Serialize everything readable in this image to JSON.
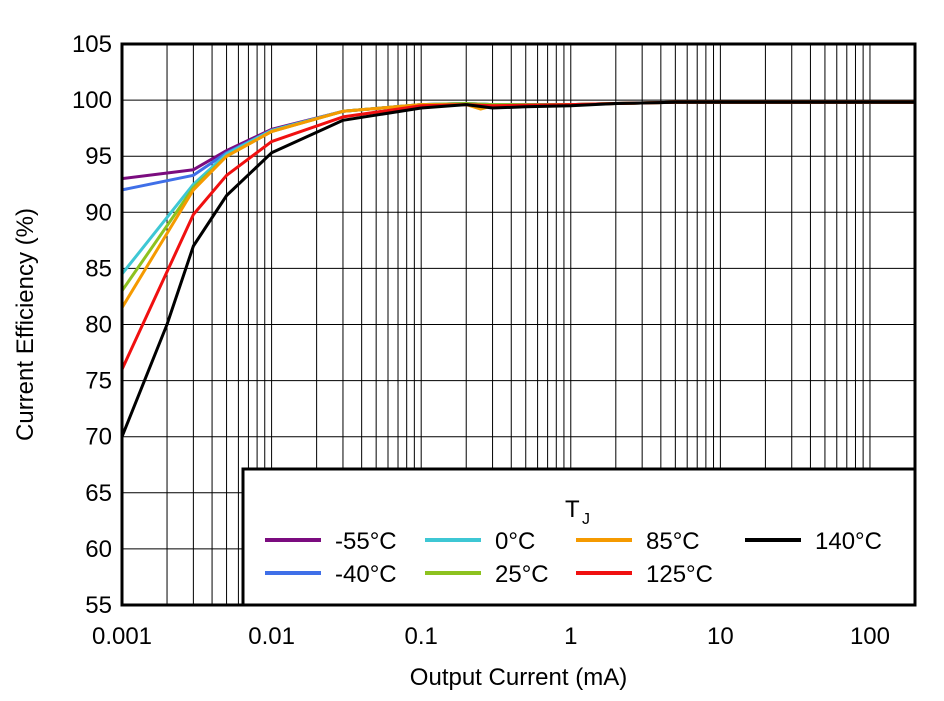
{
  "chart_data": {
    "type": "line",
    "title": "",
    "xlabel": "Output Current (mA)",
    "ylabel": "Current Efficiency (%)",
    "xscale": "log",
    "xlim": [
      0.001,
      200
    ],
    "ylim": [
      55,
      105
    ],
    "grid": true,
    "xticks": [
      0.001,
      0.01,
      0.1,
      1,
      10,
      100
    ],
    "xtick_labels": [
      "0.001",
      "0.01",
      "0.1",
      "1",
      "10",
      "100"
    ],
    "yticks": [
      55,
      60,
      65,
      70,
      75,
      80,
      85,
      90,
      95,
      100,
      105
    ],
    "ytick_labels": [
      "55",
      "60",
      "65",
      "70",
      "75",
      "80",
      "85",
      "90",
      "95",
      "100",
      "105"
    ],
    "legend_title": "T",
    "legend_title_sub": "J",
    "legend_position": "bottom-right",
    "series": [
      {
        "name": "-55°C",
        "color": "#7B0C7F",
        "x": [
          0.001,
          0.003,
          0.005,
          0.01,
          0.03,
          0.1,
          0.2,
          0.3,
          1,
          2,
          5,
          10,
          50,
          200
        ],
        "y": [
          93,
          93.8,
          95.5,
          97.4,
          99,
          99.6,
          99.7,
          99.6,
          99.6,
          99.7,
          99.8,
          99.8,
          99.8,
          99.8
        ]
      },
      {
        "name": "-40°C",
        "color": "#3F6FE8",
        "x": [
          0.001,
          0.003,
          0.005,
          0.01,
          0.03,
          0.1,
          0.2,
          0.3,
          1,
          2,
          5,
          10,
          50,
          200
        ],
        "y": [
          92,
          93.3,
          95.3,
          97.3,
          99,
          99.6,
          99.7,
          99.6,
          99.6,
          99.7,
          99.8,
          99.8,
          99.8,
          99.8
        ]
      },
      {
        "name": "0°C",
        "color": "#3EC7D4",
        "x": [
          0.001,
          0.003,
          0.005,
          0.01,
          0.03,
          0.1,
          0.2,
          0.3,
          1,
          2,
          5,
          10,
          50,
          200
        ],
        "y": [
          84.5,
          92.5,
          95.2,
          97.3,
          99,
          99.6,
          99.7,
          99.6,
          99.6,
          99.7,
          99.8,
          99.8,
          99.8,
          99.8
        ]
      },
      {
        "name": "25°C",
        "color": "#8DC21F",
        "x": [
          0.001,
          0.003,
          0.005,
          0.01,
          0.03,
          0.1,
          0.2,
          0.3,
          1,
          2,
          5,
          10,
          50,
          200
        ],
        "y": [
          83,
          92.2,
          95,
          97.2,
          99,
          99.6,
          99.7,
          99.6,
          99.6,
          99.7,
          99.8,
          99.8,
          99.8,
          99.8
        ]
      },
      {
        "name": "85°C",
        "color": "#F59A00",
        "x": [
          0.001,
          0.003,
          0.005,
          0.01,
          0.03,
          0.1,
          0.2,
          0.25,
          0.3,
          1,
          2,
          5,
          10,
          50,
          200
        ],
        "y": [
          81.5,
          92,
          95,
          97.2,
          99,
          99.6,
          99.6,
          99.2,
          99.5,
          99.6,
          99.7,
          99.8,
          99.8,
          99.8,
          99.8
        ]
      },
      {
        "name": "125°C",
        "color": "#F01010",
        "x": [
          0.001,
          0.003,
          0.005,
          0.01,
          0.03,
          0.1,
          0.2,
          0.3,
          1,
          2,
          5,
          10,
          50,
          200
        ],
        "y": [
          76,
          89.8,
          93.3,
          96.3,
          98.5,
          99.5,
          99.6,
          99.5,
          99.6,
          99.7,
          99.8,
          99.8,
          99.8,
          99.8
        ]
      },
      {
        "name": "140°C",
        "color": "#000000",
        "x": [
          0.001,
          0.002,
          0.003,
          0.005,
          0.01,
          0.03,
          0.1,
          0.2,
          0.3,
          0.5,
          1,
          2,
          5,
          10,
          50,
          200
        ],
        "y": [
          70,
          80,
          87,
          91.5,
          95.3,
          98.2,
          99.3,
          99.6,
          99.3,
          99.4,
          99.5,
          99.7,
          99.8,
          99.8,
          99.8,
          99.8
        ]
      }
    ]
  }
}
